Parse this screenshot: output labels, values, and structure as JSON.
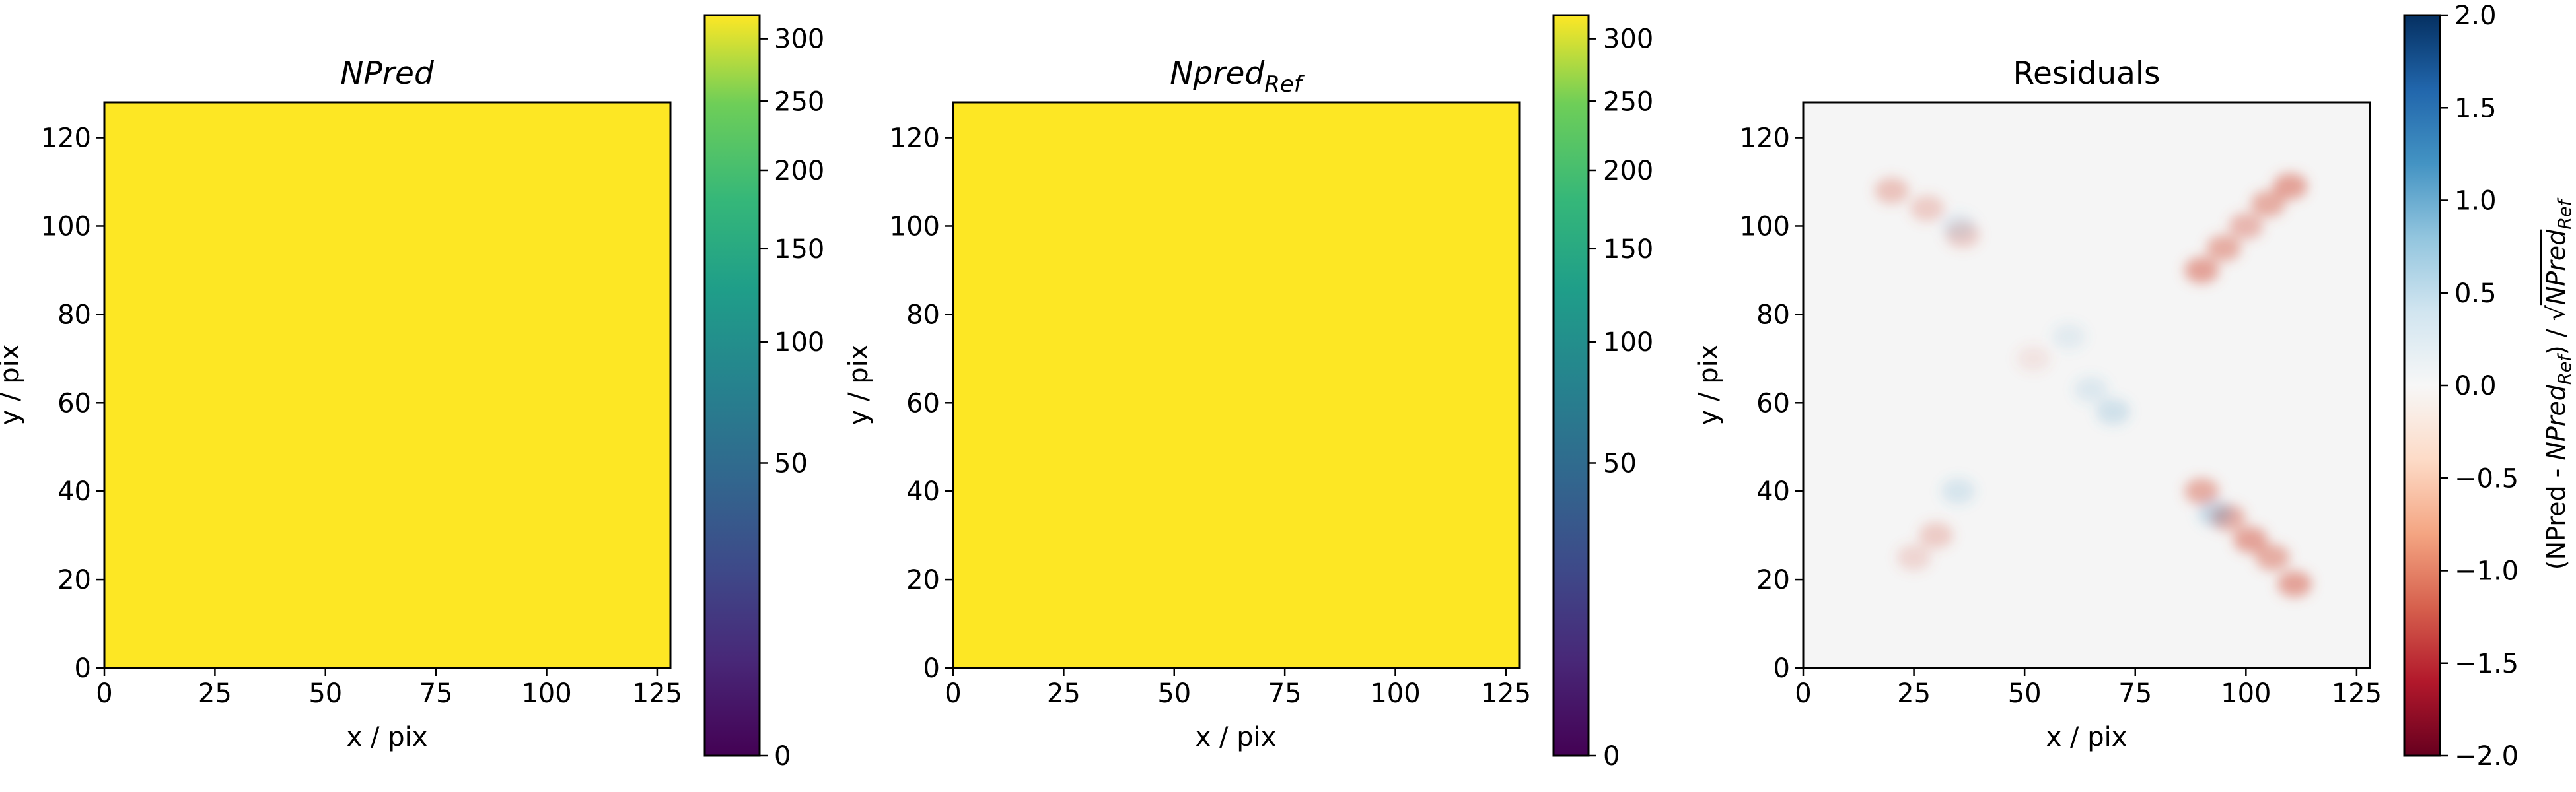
{
  "chart_data": [
    {
      "type": "heatmap",
      "title": "NPred",
      "xlabel": "x / pix",
      "ylabel": "y / pix",
      "xlim": [
        0,
        128
      ],
      "ylim": [
        0,
        128
      ],
      "x_ticks": [
        "0",
        "25",
        "50",
        "75",
        "100",
        "125"
      ],
      "y_ticks": [
        "0",
        "20",
        "40",
        "60",
        "80",
        "100",
        "120"
      ],
      "colormap": "viridis",
      "fill_color": "#fde724",
      "colorbar": {
        "scale": "sqrt",
        "range": [
          0,
          320
        ],
        "ticks": [
          "0",
          "50",
          "100",
          "150",
          "200",
          "250",
          "300"
        ]
      }
    },
    {
      "type": "heatmap",
      "title": "Npred",
      "title_subscript": "Ref",
      "xlabel": "x / pix",
      "ylabel": "y / pix",
      "xlim": [
        0,
        128
      ],
      "ylim": [
        0,
        128
      ],
      "x_ticks": [
        "0",
        "25",
        "50",
        "75",
        "100",
        "125"
      ],
      "y_ticks": [
        "0",
        "20",
        "40",
        "60",
        "80",
        "100",
        "120"
      ],
      "colormap": "viridis",
      "fill_color": "#fde724",
      "colorbar": {
        "scale": "sqrt",
        "range": [
          0,
          320
        ],
        "ticks": [
          "0",
          "50",
          "100",
          "150",
          "200",
          "250",
          "300"
        ]
      }
    },
    {
      "type": "heatmap",
      "title": "Residuals",
      "xlabel": "x / pix",
      "ylabel": "y / pix",
      "xlim": [
        0,
        128
      ],
      "ylim": [
        0,
        128
      ],
      "x_ticks": [
        "0",
        "25",
        "50",
        "75",
        "100",
        "125"
      ],
      "y_ticks": [
        "0",
        "20",
        "40",
        "60",
        "80",
        "100",
        "120"
      ],
      "colormap": "RdBu",
      "colorbar": {
        "scale": "linear",
        "range": [
          -2.0,
          2.0
        ],
        "ticks": [
          "−2.0",
          "−1.5",
          "−1.0",
          "−0.5",
          "0.0",
          "0.5",
          "1.0",
          "1.5",
          "2.0"
        ],
        "label_parts": [
          "(NPred - ",
          "NPred",
          "Ref",
          ") / √",
          "NPred",
          "Ref"
        ]
      },
      "features": [
        {
          "x": 20,
          "y": 108,
          "value": -0.25
        },
        {
          "x": 28,
          "y": 104,
          "value": -0.2
        },
        {
          "x": 36,
          "y": 98,
          "value": -0.2
        },
        {
          "x": 90,
          "y": 90,
          "value": -0.4
        },
        {
          "x": 95,
          "y": 95,
          "value": -0.35
        },
        {
          "x": 100,
          "y": 100,
          "value": -0.3
        },
        {
          "x": 105,
          "y": 105,
          "value": -0.35
        },
        {
          "x": 110,
          "y": 109,
          "value": -0.4
        },
        {
          "x": 90,
          "y": 40,
          "value": -0.35
        },
        {
          "x": 96,
          "y": 34,
          "value": -0.35
        },
        {
          "x": 101,
          "y": 29,
          "value": -0.4
        },
        {
          "x": 106,
          "y": 25,
          "value": -0.35
        },
        {
          "x": 111,
          "y": 19,
          "value": -0.4
        },
        {
          "x": 30,
          "y": 30,
          "value": -0.2
        },
        {
          "x": 25,
          "y": 25,
          "value": -0.15
        },
        {
          "x": 93,
          "y": 35,
          "value": 0.2
        },
        {
          "x": 70,
          "y": 58,
          "value": 0.15
        },
        {
          "x": 65,
          "y": 63,
          "value": 0.1
        },
        {
          "x": 35,
          "y": 100,
          "value": 0.1
        },
        {
          "x": 35,
          "y": 40,
          "value": 0.12
        },
        {
          "x": 52,
          "y": 70,
          "value": -0.08
        },
        {
          "x": 60,
          "y": 75,
          "value": 0.08
        }
      ]
    }
  ]
}
